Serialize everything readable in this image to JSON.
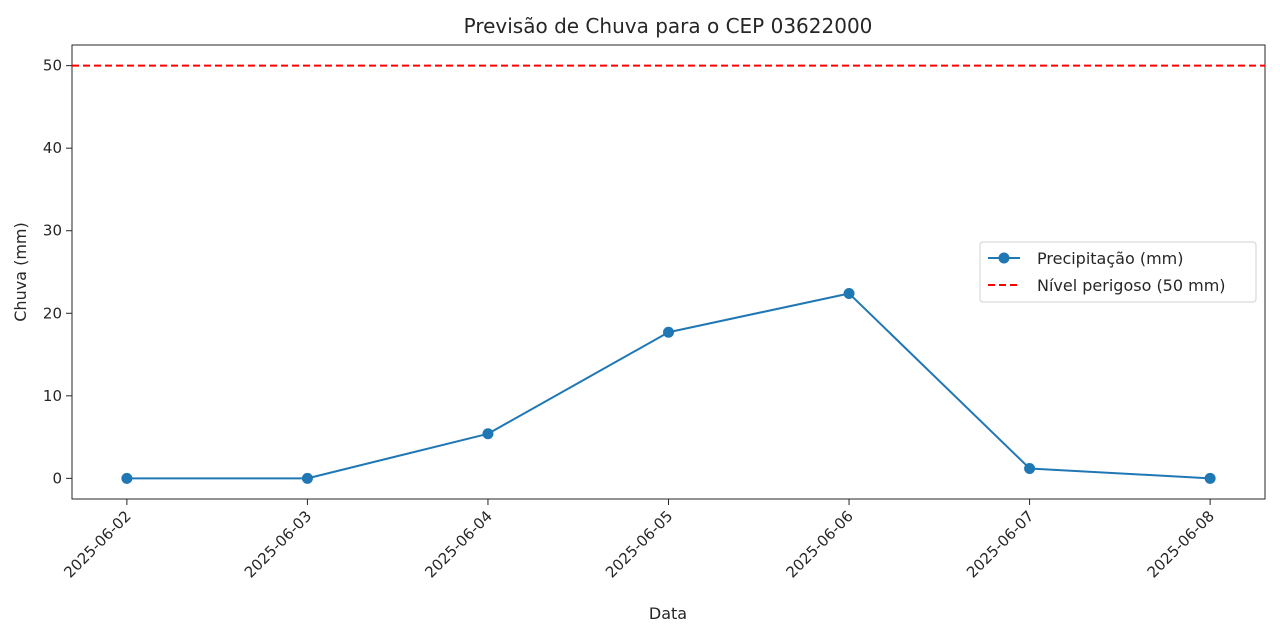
{
  "chart_data": {
    "type": "line",
    "title": "Previsão de Chuva para o CEP 03622000",
    "xlabel": "Data",
    "ylabel": "Chuva (mm)",
    "categories": [
      "2025-06-02",
      "2025-06-03",
      "2025-06-04",
      "2025-06-05",
      "2025-06-06",
      "2025-06-07",
      "2025-06-08"
    ],
    "series": [
      {
        "name": "Precipitação (mm)",
        "values": [
          0,
          0,
          5.4,
          17.7,
          22.4,
          1.2,
          0
        ],
        "color": "#1f77b4",
        "marker": "circle"
      }
    ],
    "reference_lines": [
      {
        "name": "Nível perigoso (50 mm)",
        "value": 50,
        "color": "#ff0000",
        "style": "dashed"
      }
    ],
    "ylim": [
      -2.5,
      52.5
    ],
    "yticks": [
      0,
      10,
      20,
      30,
      40,
      50
    ],
    "grid": false,
    "legend_position": "center-right"
  }
}
